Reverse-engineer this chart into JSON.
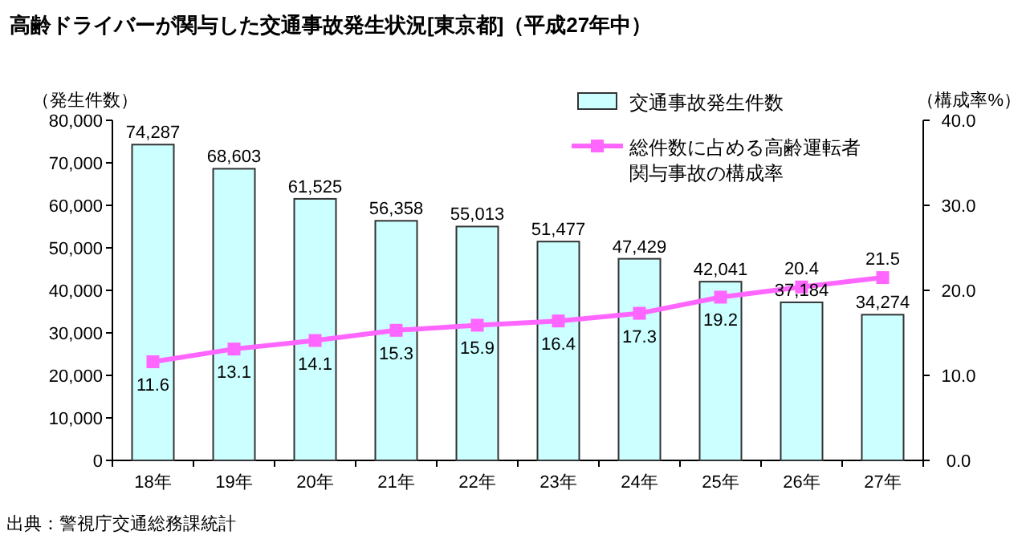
{
  "chart_data": {
    "type": "bar",
    "title": "高齢ドライバーが関与した交通事故発生状況[東京都]（平成27年中）",
    "ylabel": "（発生件数）",
    "y2label": "（構成率%）",
    "categories": [
      "18年",
      "19年",
      "20年",
      "21年",
      "22年",
      "23年",
      "24年",
      "25年",
      "26年",
      "27年"
    ],
    "series": [
      {
        "name": "交通事故発生件数",
        "type": "bar",
        "color": "#ccffff",
        "values": [
          74287,
          68603,
          61525,
          56358,
          55013,
          51477,
          47429,
          42041,
          37184,
          34274
        ],
        "value_labels": [
          "74,287",
          "68,603",
          "61,525",
          "56,358",
          "55,013",
          "51,477",
          "47,429",
          "42,041",
          "37,184",
          "34,274"
        ]
      },
      {
        "name": "総件数に占める高齢運転者関与事故の構成率",
        "type": "line",
        "axis": "y2",
        "color": "#ff66ff",
        "marker": "square",
        "values": [
          11.6,
          13.1,
          14.1,
          15.3,
          15.9,
          16.4,
          17.3,
          19.2,
          20.4,
          21.5
        ],
        "value_labels": [
          "11.6",
          "13.1",
          "14.1",
          "15.3",
          "15.9",
          "16.4",
          "17.3",
          "19.2",
          "20.4",
          "21.5"
        ]
      }
    ],
    "ylim": [
      0,
      80000
    ],
    "yticks": [
      {
        "value": 0,
        "label": "0"
      },
      {
        "value": 10000,
        "label": "10,000"
      },
      {
        "value": 20000,
        "label": "20,000"
      },
      {
        "value": 30000,
        "label": "30,000"
      },
      {
        "value": 40000,
        "label": "40,000"
      },
      {
        "value": 50000,
        "label": "50,000"
      },
      {
        "value": 60000,
        "label": "60,000"
      },
      {
        "value": 70000,
        "label": "70,000"
      },
      {
        "value": 80000,
        "label": "80,000"
      }
    ],
    "y2lim": [
      0,
      40
    ],
    "y2ticks": [
      {
        "value": 0,
        "label": "0.0"
      },
      {
        "value": 10,
        "label": "10.0"
      },
      {
        "value": 20,
        "label": "20.0"
      },
      {
        "value": 30,
        "label": "30.0"
      },
      {
        "value": 40,
        "label": "40.0"
      }
    ],
    "legend": "top right",
    "annotations": [
      "出典：警視庁交通総務課統計"
    ]
  }
}
